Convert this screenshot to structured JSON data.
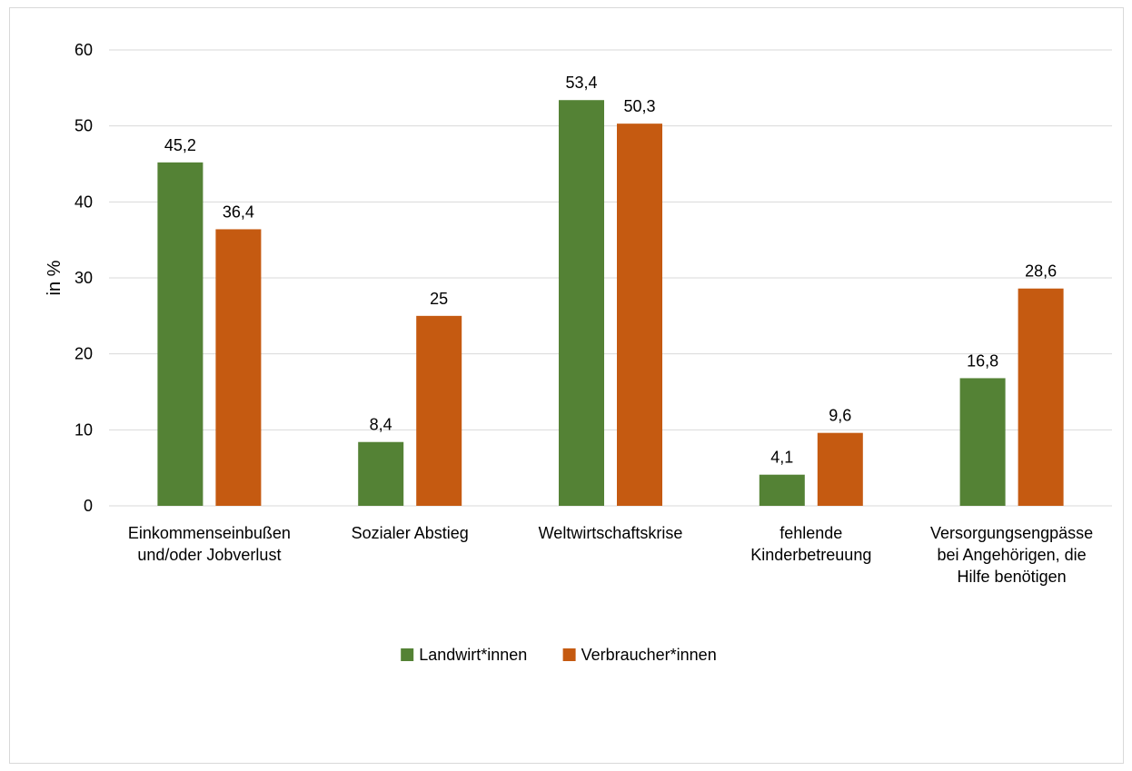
{
  "chart_data": {
    "type": "bar",
    "categories": [
      [
        "Einkommenseinbußen",
        "und/oder Jobverlust"
      ],
      [
        "Sozialer Abstieg"
      ],
      [
        "Weltwirtschaftskrise"
      ],
      [
        "fehlende",
        "Kinderbetreuung"
      ],
      [
        "Versorgungsengpässe",
        "bei Angehörigen, die",
        "Hilfe benötigen"
      ]
    ],
    "series": [
      {
        "name": "Landwirt*innen",
        "color": "#548235",
        "values": [
          45.2,
          8.4,
          53.4,
          4.1,
          16.8
        ],
        "labels": [
          "45,2",
          "8,4",
          "53,4",
          "4,1",
          "16,8"
        ]
      },
      {
        "name": "Verbraucher*innen",
        "color": "#c55a11",
        "values": [
          36.4,
          25,
          50.3,
          9.6,
          28.6
        ],
        "labels": [
          "36,4",
          "25",
          "50,3",
          "9,6",
          "28,6"
        ]
      }
    ],
    "ylabel": "in %",
    "ylim": [
      0,
      60
    ],
    "yticks": [
      0,
      10,
      20,
      30,
      40,
      50,
      60
    ],
    "grid": true,
    "legend_position": "bottom"
  }
}
